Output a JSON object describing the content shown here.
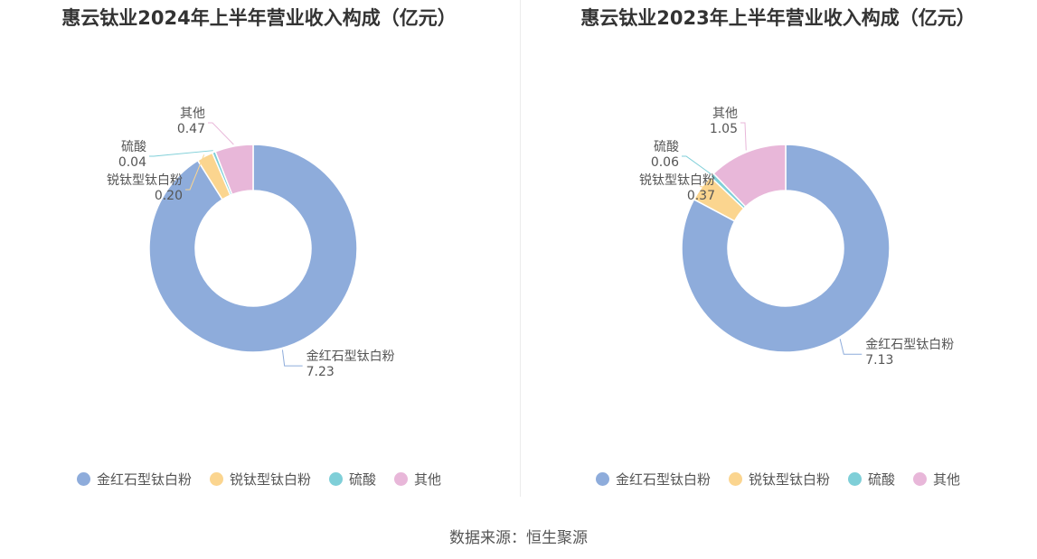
{
  "chart_data": [
    {
      "type": "pie",
      "title": "惠云钛业2024年上半年营业收入构成（亿元）",
      "categories": [
        "金红石型钛白粉",
        "锐钛型钛白粉",
        "硫酸",
        "其他"
      ],
      "values": [
        7.23,
        0.2,
        0.04,
        0.47
      ],
      "value_labels": [
        "7.23",
        "0.20",
        "0.04",
        "0.47"
      ],
      "colors": [
        "#8eacdb",
        "#fbd58f",
        "#7fcfd8",
        "#e8b7d9"
      ],
      "legend_position": "bottom"
    },
    {
      "type": "pie",
      "title": "惠云钛业2023年上半年营业收入构成（亿元）",
      "categories": [
        "金红石型钛白粉",
        "锐钛型钛白粉",
        "硫酸",
        "其他"
      ],
      "values": [
        7.13,
        0.37,
        0.06,
        1.05
      ],
      "value_labels": [
        "7.13",
        "0.37",
        "0.06",
        "1.05"
      ],
      "colors": [
        "#8eacdb",
        "#fbd58f",
        "#7fcfd8",
        "#e8b7d9"
      ],
      "legend_position": "bottom"
    }
  ],
  "source": "数据来源：恒生聚源"
}
